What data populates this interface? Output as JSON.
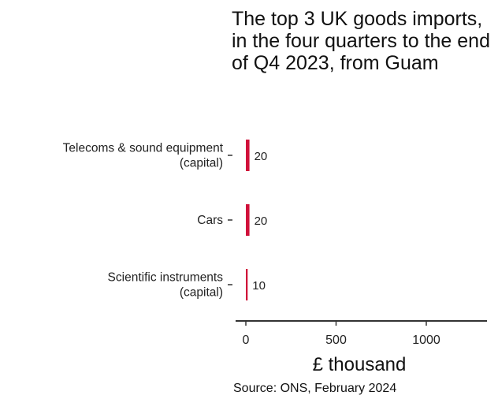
{
  "chart_data": {
    "type": "bar",
    "orientation": "horizontal",
    "title": "The top 3 UK goods imports, in the four quarters to the end of Q4 2023, from Guam",
    "categories": [
      [
        "Telecoms & sound equipment",
        "(capital)"
      ],
      [
        "Cars"
      ],
      [
        "Scientific instruments",
        "(capital)"
      ]
    ],
    "values": [
      20,
      20,
      10
    ],
    "data_labels": [
      "20",
      "20",
      "10"
    ],
    "xlabel": "£ thousand",
    "ylabel": "",
    "xlim": [
      -10,
      1350
    ],
    "x_ticks": [
      0,
      500,
      1000
    ],
    "x_tick_labels": [
      "0",
      "500",
      "1000"
    ],
    "bar_color": "#d0103a",
    "grid": false,
    "legend": "none",
    "source": "Source: ONS, February 2024"
  }
}
